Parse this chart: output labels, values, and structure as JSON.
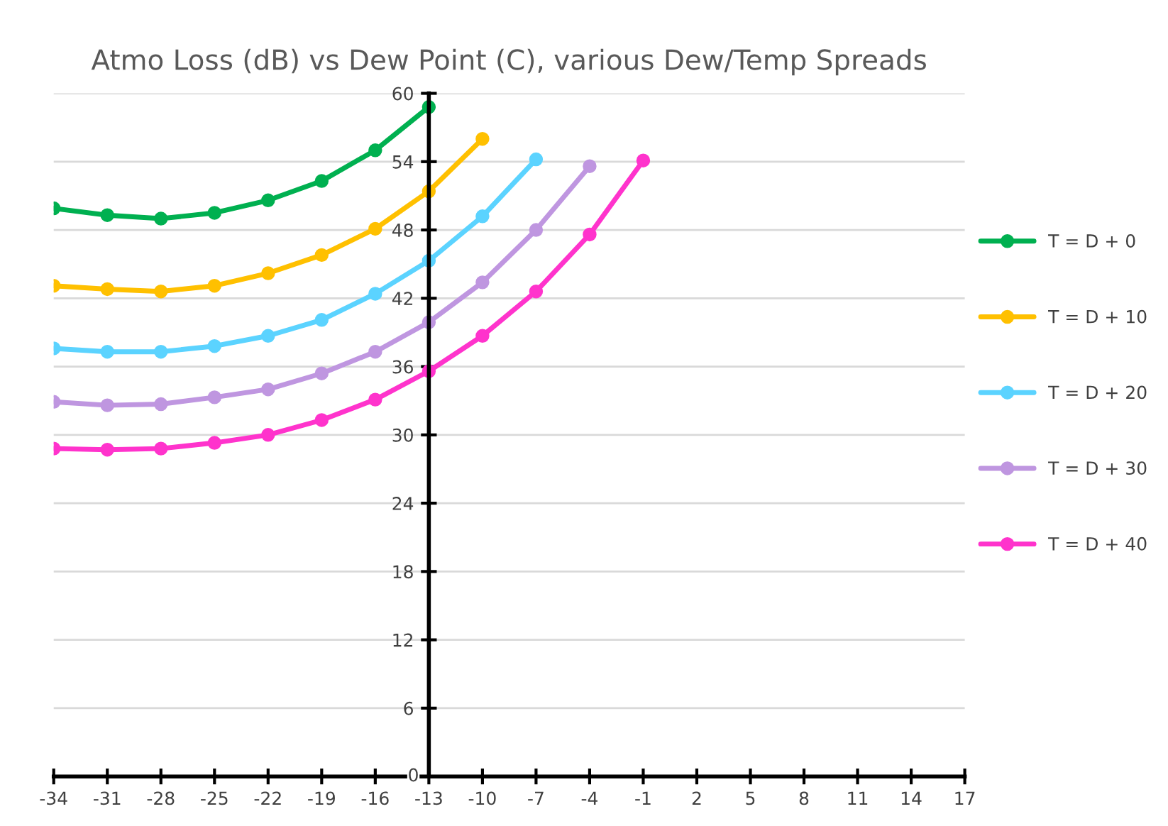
{
  "chart_data": {
    "type": "line",
    "title": "Atmo Loss (dB) vs Dew Point (C), various Dew/Temp Spreads",
    "xlim": [
      -34,
      17
    ],
    "xticks": [
      -34,
      -31,
      -28,
      -25,
      -22,
      -19,
      -16,
      -13,
      -10,
      -7,
      -4,
      -1,
      2,
      5,
      8,
      11,
      14,
      17
    ],
    "ylim": [
      0,
      60
    ],
    "yticks": [
      0,
      6,
      12,
      18,
      24,
      30,
      36,
      42,
      48,
      54,
      60
    ],
    "grid": "y",
    "legend": "right",
    "marker": "circle",
    "line_style": "solid",
    "series": [
      {
        "name": "T = D + 0",
        "color": "#00b050",
        "x": [
          -34,
          -31,
          -28,
          -25,
          -22,
          -19,
          -16,
          -13
        ],
        "values": [
          49.9,
          49.3,
          49.0,
          49.5,
          50.6,
          52.3,
          55.0,
          58.8
        ]
      },
      {
        "name": "T = D + 10",
        "color": "#ffc000",
        "x": [
          -34,
          -31,
          -28,
          -25,
          -22,
          -19,
          -16,
          -13,
          -10
        ],
        "values": [
          43.1,
          42.8,
          42.6,
          43.1,
          44.2,
          45.8,
          48.1,
          51.4,
          56.0
        ]
      },
      {
        "name": "T = D + 20",
        "color": "#5bd3ff",
        "x": [
          -34,
          -31,
          -28,
          -25,
          -22,
          -19,
          -16,
          -13,
          -10,
          -7
        ],
        "values": [
          37.6,
          37.3,
          37.3,
          37.8,
          38.7,
          40.1,
          42.4,
          45.3,
          49.2,
          54.2
        ]
      },
      {
        "name": "T = D + 30",
        "color": "#bf96e0",
        "x": [
          -34,
          -31,
          -28,
          -25,
          -22,
          -19,
          -16,
          -13,
          -10,
          -7,
          -4
        ],
        "values": [
          32.9,
          32.6,
          32.7,
          33.3,
          34.0,
          35.4,
          37.3,
          39.9,
          43.4,
          48.0,
          53.6
        ]
      },
      {
        "name": "T = D + 40",
        "color": "#ff33cc",
        "x": [
          -34,
          -31,
          -28,
          -25,
          -22,
          -19,
          -16,
          -13,
          -10,
          -7,
          -4,
          -1
        ],
        "values": [
          28.8,
          28.7,
          28.8,
          29.3,
          30.0,
          31.3,
          33.1,
          35.6,
          38.7,
          42.6,
          47.6,
          54.1
        ]
      }
    ]
  }
}
